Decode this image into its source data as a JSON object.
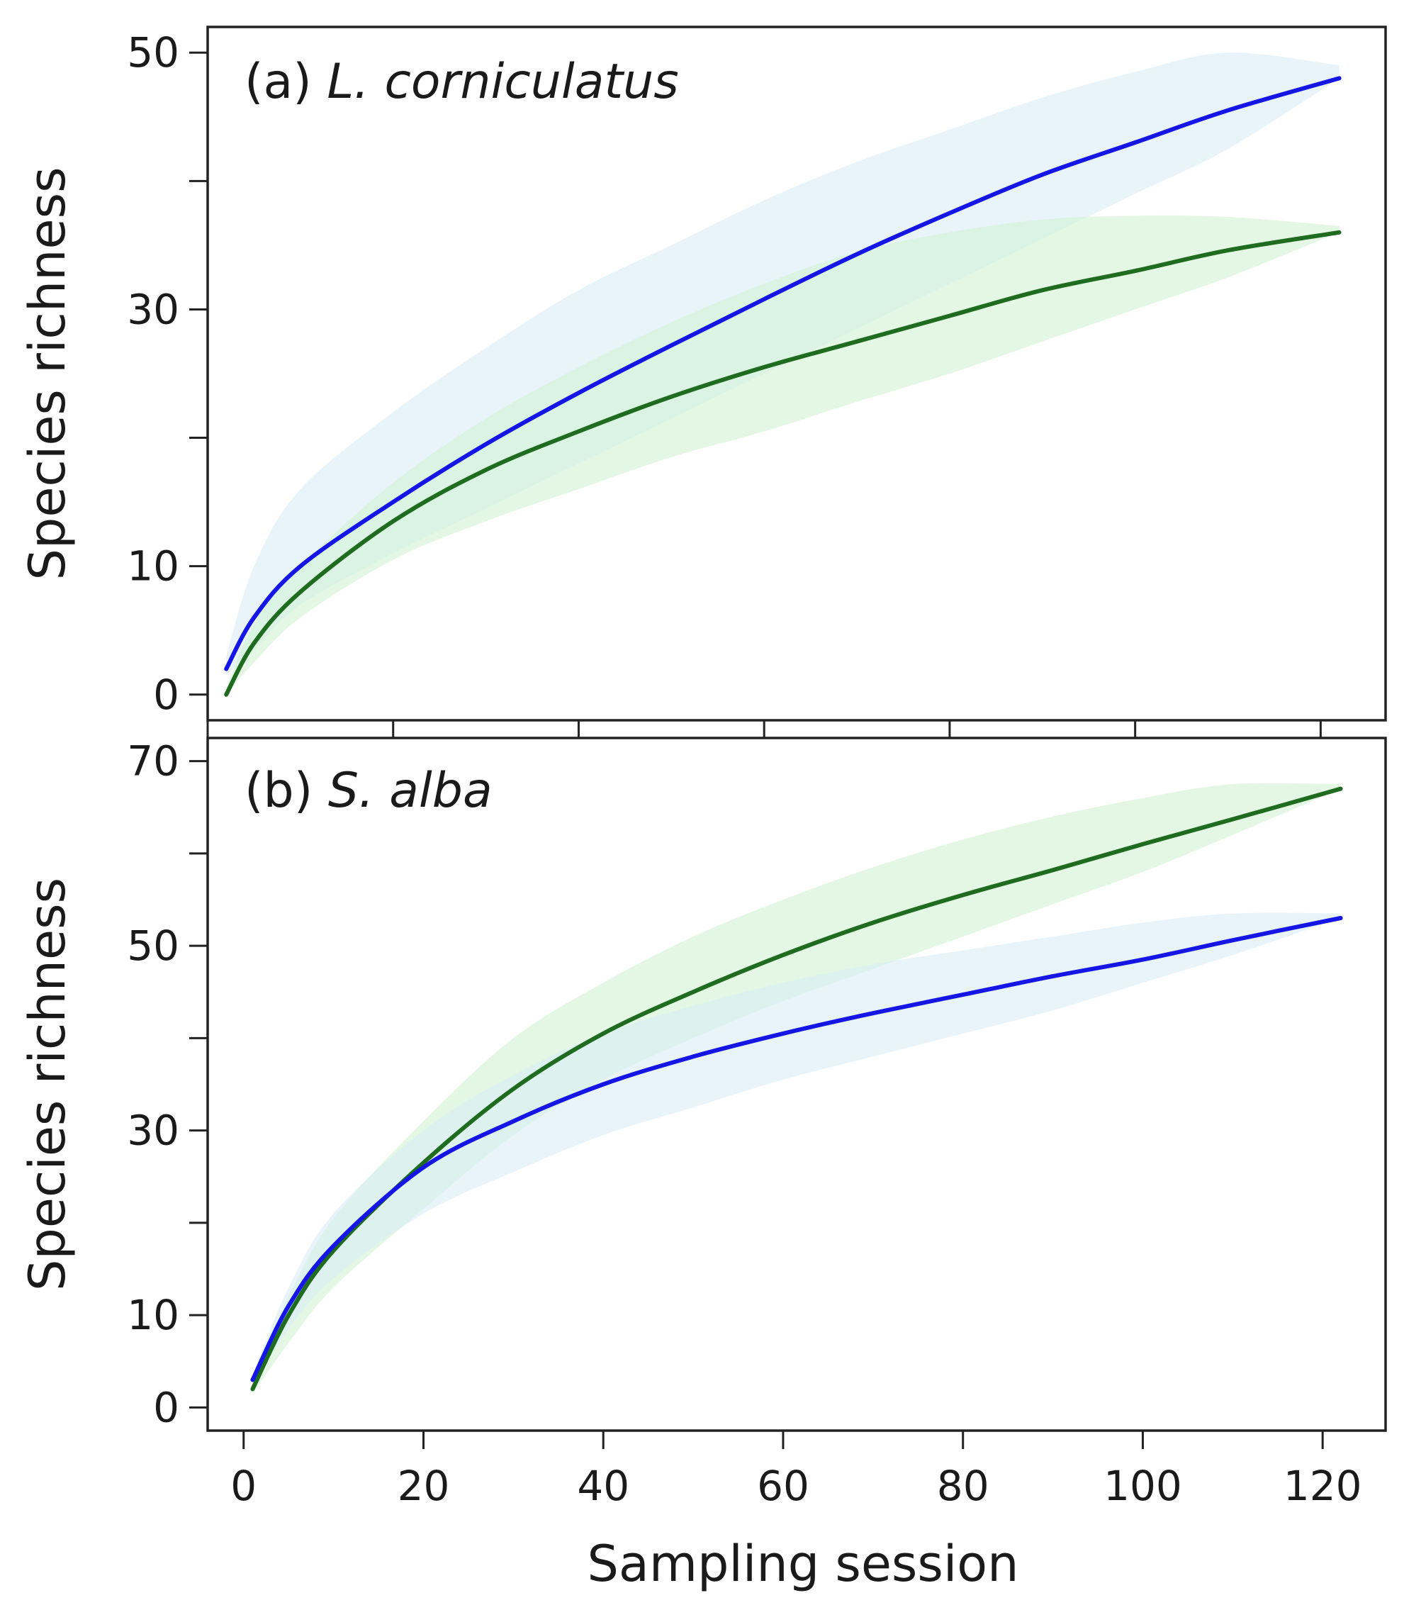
{
  "colors": {
    "blue_line": "#1515e6",
    "green_line": "#1f6b1f",
    "blue_band": "#d9ecf6",
    "green_band": "#d2f2d2",
    "axis": "#222222",
    "text": "#1a1a1a"
  },
  "chart_data": [
    {
      "type": "line",
      "panel": "a",
      "title_prefix": "(a) ",
      "title_species": "L. corniculatus",
      "ylabel": "Species richness",
      "xlim": [
        0,
        127
      ],
      "ylim": [
        -2,
        52
      ],
      "yticks": [
        0,
        10,
        20,
        30,
        40,
        50
      ],
      "ytick_labels": [
        "0",
        "10",
        "",
        "30",
        "",
        "50"
      ],
      "xticks": [
        0,
        20,
        40,
        60,
        80,
        100,
        120
      ],
      "x": [
        2,
        5,
        10,
        20,
        30,
        40,
        50,
        60,
        70,
        80,
        90,
        100,
        110,
        122
      ],
      "series": [
        {
          "name": "blue",
          "color": "blue_line",
          "band_color": "blue_band",
          "values": [
            2,
            6,
            10,
            15,
            19.5,
            23.5,
            27.2,
            30.8,
            34.3,
            37.5,
            40.5,
            43,
            45.5,
            48
          ],
          "lower": [
            1.5,
            3.5,
            7,
            11,
            14.5,
            18,
            21.5,
            25,
            28.5,
            32,
            35.5,
            39,
            42.5,
            48
          ],
          "upper": [
            3,
            10,
            16,
            22,
            27,
            31.5,
            35,
            38.5,
            41.5,
            44,
            46.5,
            48.5,
            50,
            49
          ]
        },
        {
          "name": "green",
          "color": "green_line",
          "band_color": "green_band",
          "values": [
            0,
            4,
            8,
            13.5,
            17.5,
            20.5,
            23.2,
            25.5,
            27.5,
            29.5,
            31.5,
            33,
            34.6,
            36
          ],
          "lower": [
            0,
            2.5,
            6,
            10.5,
            13.5,
            16,
            18.5,
            20.5,
            22.8,
            25,
            27.5,
            30,
            32.5,
            36
          ],
          "upper": [
            0.5,
            5.5,
            10,
            16.5,
            21.5,
            25.5,
            29,
            32,
            34.5,
            36,
            37,
            37.3,
            37.2,
            36.5
          ]
        }
      ]
    },
    {
      "type": "line",
      "panel": "b",
      "title_prefix": "(b) ",
      "title_species": "S. alba",
      "ylabel": "Species richness",
      "xlabel": "Sampling session",
      "xlim": [
        -4,
        127
      ],
      "ylim": [
        -2.5,
        72.5
      ],
      "yticks": [
        0,
        10,
        20,
        30,
        40,
        50,
        60,
        70
      ],
      "ytick_labels": [
        "0",
        "10",
        "",
        "30",
        "",
        "50",
        "",
        "70"
      ],
      "xticks": [
        0,
        20,
        40,
        60,
        80,
        100,
        120
      ],
      "xtick_labels": [
        "0",
        "20",
        "40",
        "60",
        "80",
        "100",
        "120"
      ],
      "x": [
        1,
        5,
        10,
        20,
        30,
        40,
        50,
        60,
        70,
        80,
        90,
        100,
        110,
        122
      ],
      "series": [
        {
          "name": "green",
          "color": "green_line",
          "band_color": "green_band",
          "values": [
            2,
            10,
            17,
            26.5,
            34.5,
            40.5,
            45,
            49,
            52.5,
            55.5,
            58.2,
            61,
            63.7,
            67
          ],
          "lower": [
            1.5,
            7,
            13,
            21.5,
            29.5,
            35.5,
            40,
            44,
            47.5,
            51,
            54.5,
            58,
            62,
            67
          ],
          "upper": [
            3,
            12,
            20.5,
            31,
            40,
            46,
            51,
            55,
            58.5,
            61.5,
            64,
            66,
            67.5,
            67.5
          ]
        },
        {
          "name": "blue",
          "color": "blue_line",
          "band_color": "blue_band",
          "values": [
            3,
            11,
            17.5,
            26,
            31,
            35,
            38,
            40.5,
            42.7,
            44.7,
            46.7,
            48.5,
            50.6,
            53
          ],
          "lower": [
            2.5,
            8.5,
            14,
            21,
            25.5,
            29.5,
            32.5,
            35.5,
            38,
            40.5,
            43,
            46,
            49,
            53
          ],
          "upper": [
            3.5,
            13,
            21,
            30,
            36,
            40.5,
            43.5,
            46,
            48,
            49.5,
            51,
            52.5,
            53.5,
            53.5
          ]
        }
      ]
    }
  ]
}
